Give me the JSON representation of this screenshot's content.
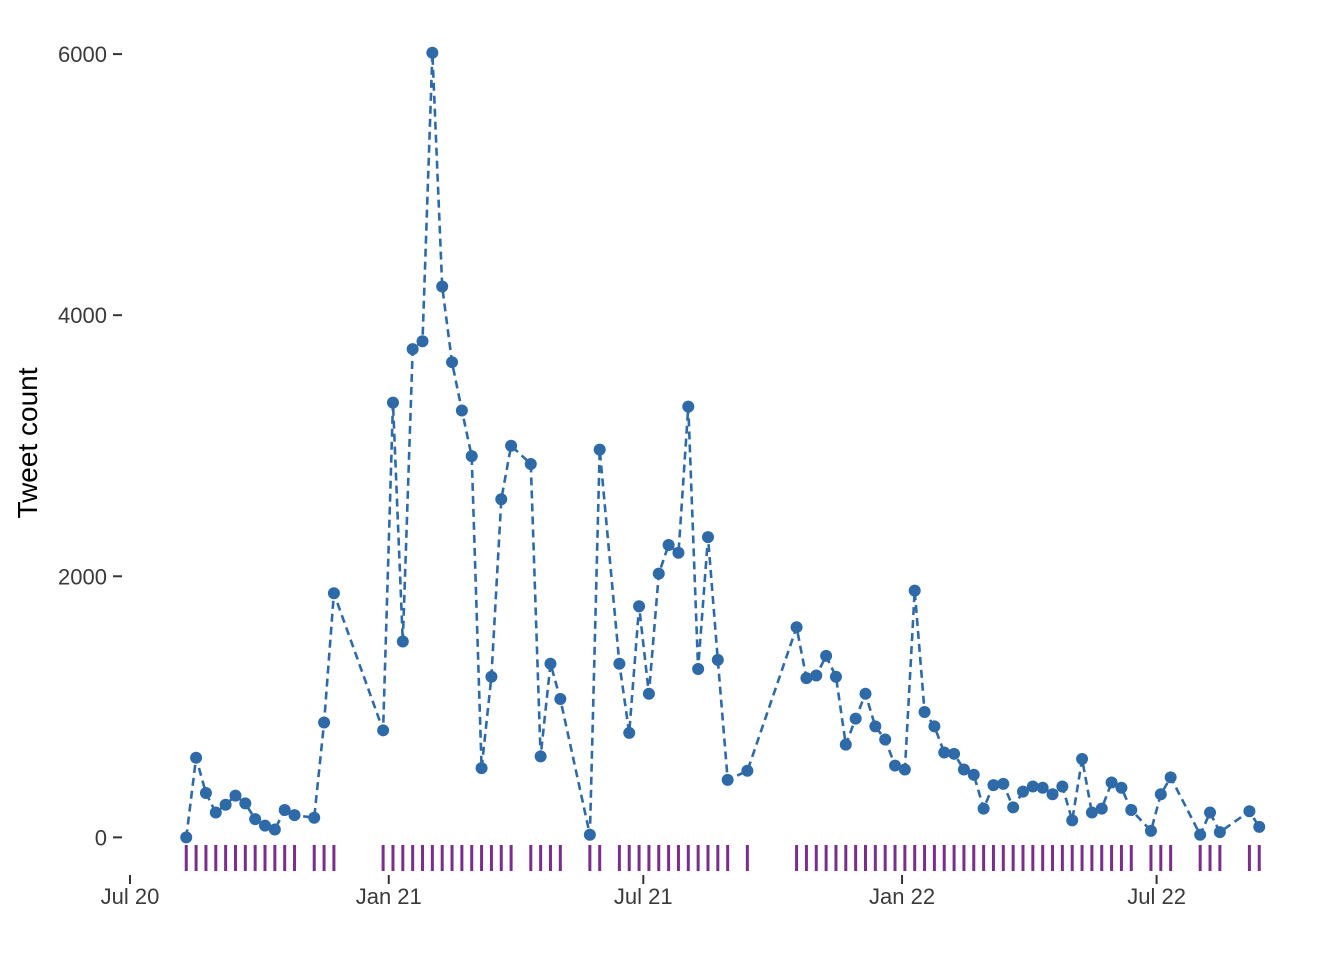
{
  "chart_data": {
    "type": "line",
    "title": "",
    "xlabel": "",
    "ylabel": "Tweet count",
    "xlim": [
      "2020-07-01",
      "2022-10-06"
    ],
    "ylim": [
      -250,
      6200
    ],
    "y_ticks": [
      0,
      2000,
      4000,
      6000
    ],
    "y_tick_labels": [
      "0",
      "2000",
      "4000",
      "6000"
    ],
    "x_ticks": [
      "2020-07-01",
      "2021-01-01",
      "2021-07-01",
      "2022-01-01",
      "2022-07-01"
    ],
    "x_tick_labels": [
      "Jul 20",
      "Jan 21",
      "Jul 21",
      "Jan 22",
      "Jul 22"
    ],
    "grid": false,
    "line_style": "dashed",
    "colors": {
      "series": "#2e6aa8",
      "rug": "#7b2d8e",
      "axis": "#333333"
    },
    "series": [
      {
        "dates": [
          "2020-08-10",
          "2020-08-17",
          "2020-08-24",
          "2020-08-31",
          "2020-09-07",
          "2020-09-14",
          "2020-09-21",
          "2020-09-28",
          "2020-10-05",
          "2020-10-12",
          "2020-10-19",
          "2020-10-26",
          "2020-11-09",
          "2020-11-16",
          "2020-11-23",
          "2020-12-28",
          "2021-01-04",
          "2021-01-11",
          "2021-01-18",
          "2021-01-25",
          "2021-02-01",
          "2021-02-08",
          "2021-02-15",
          "2021-02-22",
          "2021-03-01",
          "2021-03-08",
          "2021-03-15",
          "2021-03-22",
          "2021-03-29",
          "2021-04-12",
          "2021-04-19",
          "2021-04-26",
          "2021-05-03",
          "2021-05-24",
          "2021-05-31",
          "2021-06-14",
          "2021-06-21",
          "2021-06-28",
          "2021-07-05",
          "2021-07-12",
          "2021-07-19",
          "2021-07-26",
          "2021-08-02",
          "2021-08-09",
          "2021-08-16",
          "2021-08-23",
          "2021-08-30",
          "2021-09-13",
          "2021-10-18",
          "2021-10-25",
          "2021-11-01",
          "2021-11-08",
          "2021-11-15",
          "2021-11-22",
          "2021-11-29",
          "2021-12-06",
          "2021-12-13",
          "2021-12-20",
          "2021-12-27",
          "2022-01-03",
          "2022-01-10",
          "2022-01-17",
          "2022-01-24",
          "2022-01-31",
          "2022-02-07",
          "2022-02-14",
          "2022-02-21",
          "2022-02-28",
          "2022-03-07",
          "2022-03-14",
          "2022-03-21",
          "2022-03-28",
          "2022-04-04",
          "2022-04-11",
          "2022-04-18",
          "2022-04-25",
          "2022-05-02",
          "2022-05-09",
          "2022-05-16",
          "2022-05-23",
          "2022-05-30",
          "2022-06-06",
          "2022-06-13",
          "2022-06-27",
          "2022-07-04",
          "2022-07-11",
          "2022-08-01",
          "2022-08-08",
          "2022-08-15",
          "2022-09-05",
          "2022-09-12"
        ],
        "values": [
          0,
          610,
          340,
          190,
          250,
          320,
          260,
          140,
          90,
          60,
          210,
          170,
          150,
          880,
          1870,
          820,
          3330,
          1500,
          3740,
          3800,
          6010,
          4220,
          3640,
          3270,
          2920,
          530,
          1230,
          2590,
          3000,
          2860,
          620,
          1330,
          1060,
          20,
          2970,
          1330,
          800,
          1770,
          1100,
          2020,
          2240,
          2180,
          3300,
          1290,
          2300,
          1360,
          440,
          510,
          1610,
          1220,
          1240,
          1390,
          1230,
          710,
          910,
          1100,
          850,
          750,
          550,
          520,
          1890,
          960,
          850,
          650,
          640,
          520,
          480,
          220,
          400,
          410,
          230,
          350,
          390,
          380,
          330,
          390,
          130,
          600,
          190,
          220,
          420,
          380,
          210,
          50,
          330,
          460,
          20,
          190,
          40,
          200,
          80
        ]
      }
    ]
  }
}
